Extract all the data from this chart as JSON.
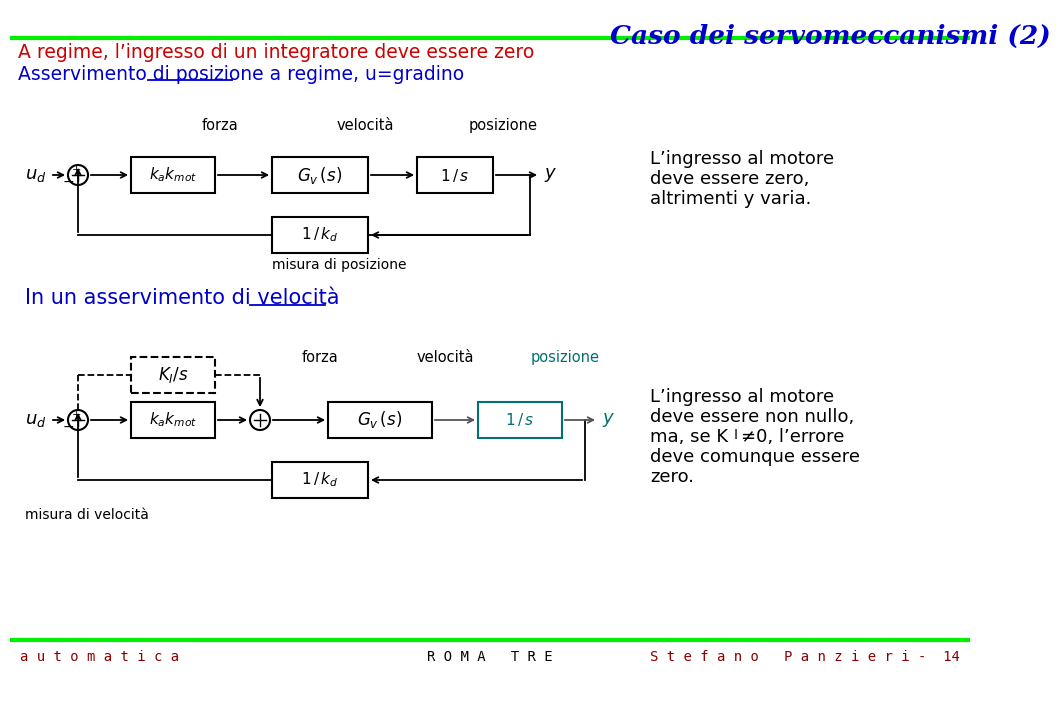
{
  "title": "Caso dei servomeccanismi (2)",
  "title_color": "#0000CC",
  "line1": "A regime, l’ingresso di un integratore deve essere zero",
  "line1_color": "#CC0000",
  "line2": "Asservimento di posizione a regime, u=gradino",
  "line2_color": "#0000CC",
  "section2": "In un asservimento di velocità",
  "section2_color": "#0000CC",
  "teal": "#007070",
  "bg": "#FFFFFF",
  "black": "#000000",
  "green_line": "#00EE00",
  "footer_color": "#880000",
  "footer_left": "a u t o m a t i c a",
  "footer_center": "R O M A   T R E",
  "footer_right": "S t e f a n o   P a n z i e r i -  14"
}
